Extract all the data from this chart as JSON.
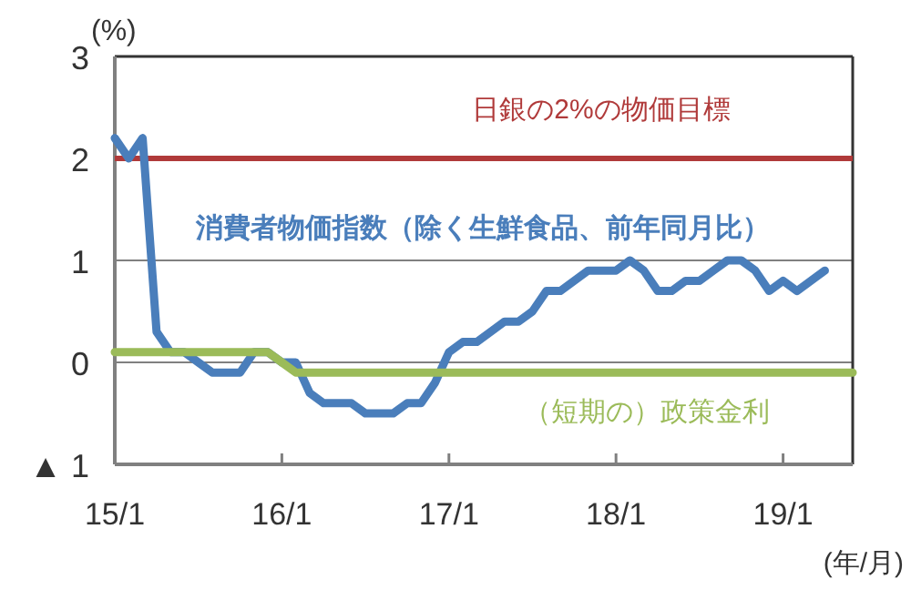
{
  "chart_data": {
    "type": "line",
    "ylabel": "(%)",
    "xlabel": "(年/月)",
    "categories": [
      "15/1",
      null,
      null,
      null,
      null,
      null,
      null,
      null,
      null,
      null,
      null,
      null,
      "16/1",
      null,
      null,
      null,
      null,
      null,
      null,
      null,
      null,
      null,
      null,
      null,
      "17/1",
      null,
      null,
      null,
      null,
      null,
      null,
      null,
      null,
      null,
      null,
      null,
      "18/1",
      null,
      null,
      null,
      null,
      null,
      null,
      null,
      null,
      null,
      null,
      null,
      "19/1",
      null,
      null,
      null,
      null,
      null
    ],
    "ylim": [
      -1,
      3
    ],
    "yticks": [
      {
        "value": -1,
        "label": "▲ 1"
      },
      0,
      1,
      2,
      3
    ],
    "grid": "y",
    "legend": false,
    "line_style": "solid",
    "marker": "none",
    "series": [
      {
        "name": "消費者物価指数（除く生鮮食品、前年同月比）",
        "color": "#4a7ebb",
        "values": [
          2.2,
          2.0,
          2.2,
          0.3,
          0.1,
          0.1,
          0.0,
          -0.1,
          -0.1,
          -0.1,
          0.1,
          0.1,
          0.0,
          0.0,
          -0.3,
          -0.4,
          -0.4,
          -0.4,
          -0.5,
          -0.5,
          -0.5,
          -0.4,
          -0.4,
          -0.2,
          0.1,
          0.2,
          0.2,
          0.3,
          0.4,
          0.4,
          0.5,
          0.7,
          0.7,
          0.8,
          0.9,
          0.9,
          0.9,
          1.0,
          0.9,
          0.7,
          0.7,
          0.8,
          0.8,
          0.9,
          1.0,
          1.0,
          0.9,
          0.7,
          0.8,
          0.7,
          0.8,
          0.9,
          null,
          null
        ]
      },
      {
        "name": "（短期の）政策金利",
        "color": "#9bbb59",
        "values": [
          0.1,
          0.1,
          0.1,
          0.1,
          0.1,
          0.1,
          0.1,
          0.1,
          0.1,
          0.1,
          0.1,
          0.1,
          0.0,
          -0.1,
          -0.1,
          -0.1,
          -0.1,
          -0.1,
          -0.1,
          -0.1,
          -0.1,
          -0.1,
          -0.1,
          -0.1,
          -0.1,
          -0.1,
          -0.1,
          -0.1,
          -0.1,
          -0.1,
          -0.1,
          -0.1,
          -0.1,
          -0.1,
          -0.1,
          -0.1,
          -0.1,
          -0.1,
          -0.1,
          -0.1,
          -0.1,
          -0.1,
          -0.1,
          -0.1,
          -0.1,
          -0.1,
          -0.1,
          -0.1,
          -0.1,
          -0.1,
          -0.1,
          -0.1,
          -0.1,
          -0.1
        ]
      }
    ],
    "ref_lines": [
      {
        "axis": "y",
        "value": 2,
        "label": "日銀の2%の物価目標",
        "color": "#b03a3a"
      }
    ]
  }
}
